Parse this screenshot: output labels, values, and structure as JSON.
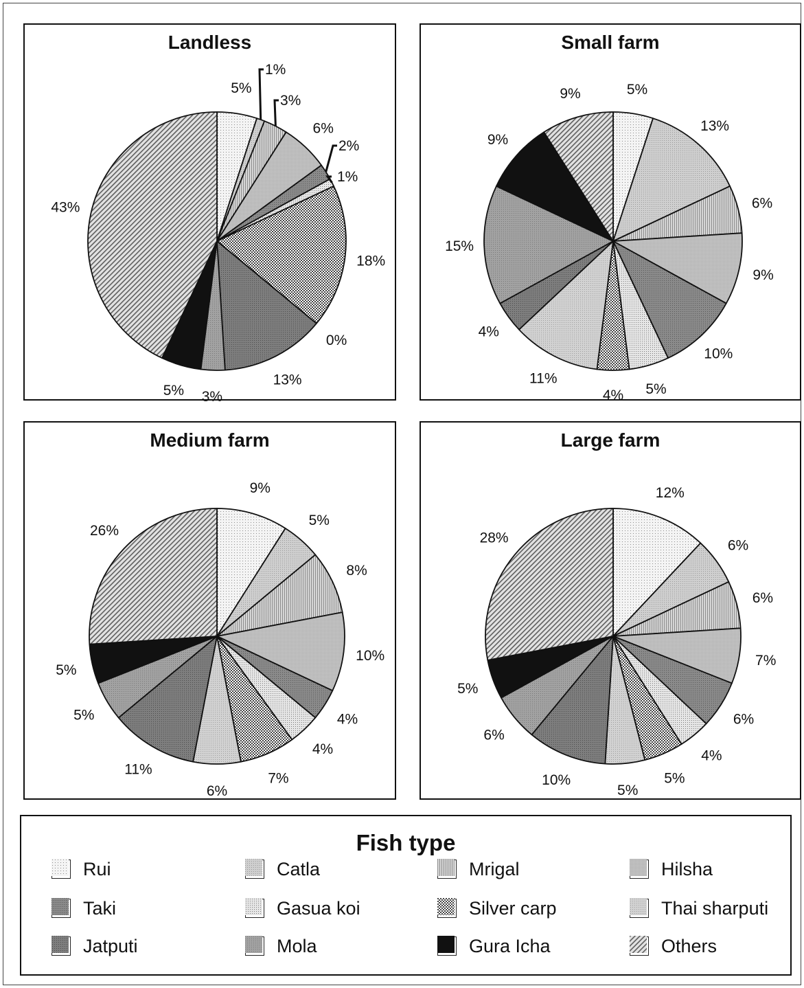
{
  "legend": {
    "title": "Fish type",
    "items": [
      {
        "label": "Rui",
        "pattern": "dots"
      },
      {
        "label": "Catla",
        "pattern": "catla"
      },
      {
        "label": "Mrigal",
        "pattern": "vlines"
      },
      {
        "label": "Hilsha",
        "pattern": "fine-grey"
      },
      {
        "label": "Taki",
        "pattern": "dark-grey"
      },
      {
        "label": "Gasua koi",
        "pattern": "light-dots"
      },
      {
        "label": "Silver carp",
        "pattern": "checker"
      },
      {
        "label": "Thai sharputi",
        "pattern": "thai"
      },
      {
        "label": "Jatputi",
        "pattern": "jatputi"
      },
      {
        "label": "Mola",
        "pattern": "mola"
      },
      {
        "label": "Gura Icha",
        "pattern": "black"
      },
      {
        "label": "Others",
        "pattern": "diag"
      }
    ]
  },
  "colors": {
    "border": "#111111",
    "black_fill": "#111111",
    "background": "#ffffff"
  },
  "chart_data": [
    {
      "type": "pie",
      "title": "Landless",
      "slices": [
        {
          "category": "Rui",
          "value": 5,
          "label": "5%"
        },
        {
          "category": "Catla",
          "value": 1,
          "label": "1%"
        },
        {
          "category": "Mrigal",
          "value": 3,
          "label": "3%"
        },
        {
          "category": "Hilsha",
          "value": 6,
          "label": "6%"
        },
        {
          "category": "Taki",
          "value": 2,
          "label": "2%"
        },
        {
          "category": "Gasua koi",
          "value": 1,
          "label": "1%"
        },
        {
          "category": "Silver carp",
          "value": 18,
          "label": "18%"
        },
        {
          "category": "Thai sharputi",
          "value": 0,
          "label": "0%"
        },
        {
          "category": "Jatputi",
          "value": 13,
          "label": "13%"
        },
        {
          "category": "Mola",
          "value": 3,
          "label": "3%"
        },
        {
          "category": "Gura Icha",
          "value": 5,
          "label": "5%"
        },
        {
          "category": "Others",
          "value": 43,
          "label": "43%"
        }
      ]
    },
    {
      "type": "pie",
      "title": "Small farm",
      "slices": [
        {
          "category": "Rui",
          "value": 5,
          "label": "5%"
        },
        {
          "category": "Catla",
          "value": 13,
          "label": "13%"
        },
        {
          "category": "Mrigal",
          "value": 6,
          "label": "6%"
        },
        {
          "category": "Hilsha",
          "value": 9,
          "label": "9%"
        },
        {
          "category": "Taki",
          "value": 10,
          "label": "10%"
        },
        {
          "category": "Gasua koi",
          "value": 5,
          "label": "5%"
        },
        {
          "category": "Silver carp",
          "value": 4,
          "label": "4%"
        },
        {
          "category": "Thai sharputi",
          "value": 11,
          "label": "11%"
        },
        {
          "category": "Jatputi",
          "value": 4,
          "label": "4%"
        },
        {
          "category": "Mola",
          "value": 15,
          "label": "15%"
        },
        {
          "category": "Gura Icha",
          "value": 9,
          "label": "9%"
        },
        {
          "category": "Others",
          "value": 9,
          "label": "9%"
        }
      ]
    },
    {
      "type": "pie",
      "title": "Medium farm",
      "slices": [
        {
          "category": "Rui",
          "value": 9,
          "label": "9%"
        },
        {
          "category": "Catla",
          "value": 5,
          "label": "5%"
        },
        {
          "category": "Mrigal",
          "value": 8,
          "label": "8%"
        },
        {
          "category": "Hilsha",
          "value": 10,
          "label": "10%"
        },
        {
          "category": "Taki",
          "value": 4,
          "label": "4%"
        },
        {
          "category": "Gasua koi",
          "value": 4,
          "label": "4%"
        },
        {
          "category": "Silver carp",
          "value": 7,
          "label": "7%"
        },
        {
          "category": "Thai sharputi",
          "value": 6,
          "label": "6%"
        },
        {
          "category": "Jatputi",
          "value": 11,
          "label": "11%"
        },
        {
          "category": "Mola",
          "value": 5,
          "label": "5%"
        },
        {
          "category": "Gura Icha",
          "value": 5,
          "label": "5%"
        },
        {
          "category": "Others",
          "value": 26,
          "label": "26%"
        }
      ]
    },
    {
      "type": "pie",
      "title": "Large farm",
      "slices": [
        {
          "category": "Rui",
          "value": 12,
          "label": "12%"
        },
        {
          "category": "Catla",
          "value": 6,
          "label": "6%"
        },
        {
          "category": "Mrigal",
          "value": 6,
          "label": "6%"
        },
        {
          "category": "Hilsha",
          "value": 7,
          "label": "7%"
        },
        {
          "category": "Taki",
          "value": 6,
          "label": "6%"
        },
        {
          "category": "Gasua koi",
          "value": 4,
          "label": "4%"
        },
        {
          "category": "Silver carp",
          "value": 5,
          "label": "5%"
        },
        {
          "category": "Thai sharputi",
          "value": 5,
          "label": "5%"
        },
        {
          "category": "Jatputi",
          "value": 10,
          "label": "10%"
        },
        {
          "category": "Mola",
          "value": 6,
          "label": "6%"
        },
        {
          "category": "Gura Icha",
          "value": 5,
          "label": "5%"
        },
        {
          "category": "Others",
          "value": 28,
          "label": "28%"
        }
      ]
    }
  ]
}
